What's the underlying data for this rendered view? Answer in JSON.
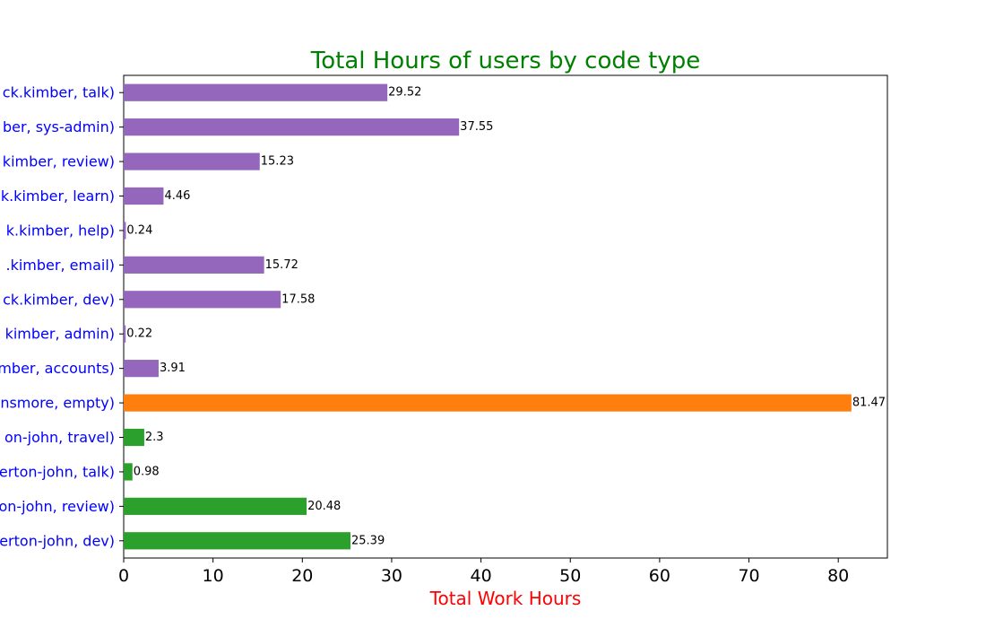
{
  "chart_data": {
    "type": "bar",
    "orientation": "horizontal",
    "title": "Total Hours of users by code type",
    "xlabel": "Total Work Hours",
    "ylabel": "",
    "xlim": [
      0,
      85.5
    ],
    "xticks": [
      0,
      10,
      20,
      30,
      40,
      50,
      60,
      70,
      80
    ],
    "grid": false,
    "categories": [
      "erton-john, dev)",
      "on-john, review)",
      "erton-john, talk)",
      "on-john, travel)",
      "nsmore, empty)",
      "mber, accounts)",
      "kimber, admin)",
      "ck.kimber, dev)",
      ".kimber, email)",
      "k.kimber, help)",
      "k.kimber, learn)",
      "kimber, review)",
      "ber, sys-admin)",
      "ck.kimber, talk)"
    ],
    "values": [
      25.39,
      20.48,
      0.98,
      2.3,
      81.47,
      3.91,
      0.22,
      17.58,
      15.72,
      0.24,
      4.46,
      15.23,
      37.55,
      29.52
    ],
    "value_labels": [
      "25.39",
      "20.48",
      "0.98",
      "2.3",
      "81.47",
      "3.91",
      "0.22",
      "17.58",
      "15.72",
      "0.24",
      "4.46",
      "15.23",
      "37.55",
      "29.52"
    ],
    "bar_colors": [
      "#2ca02c",
      "#2ca02c",
      "#2ca02c",
      "#2ca02c",
      "#ff7f0e",
      "#9467bd",
      "#9467bd",
      "#9467bd",
      "#9467bd",
      "#9467bd",
      "#9467bd",
      "#9467bd",
      "#9467bd",
      "#9467bd"
    ],
    "colors": {
      "title": "#008000",
      "xlabel": "#ff0000",
      "category_labels": "#0000ff"
    }
  }
}
